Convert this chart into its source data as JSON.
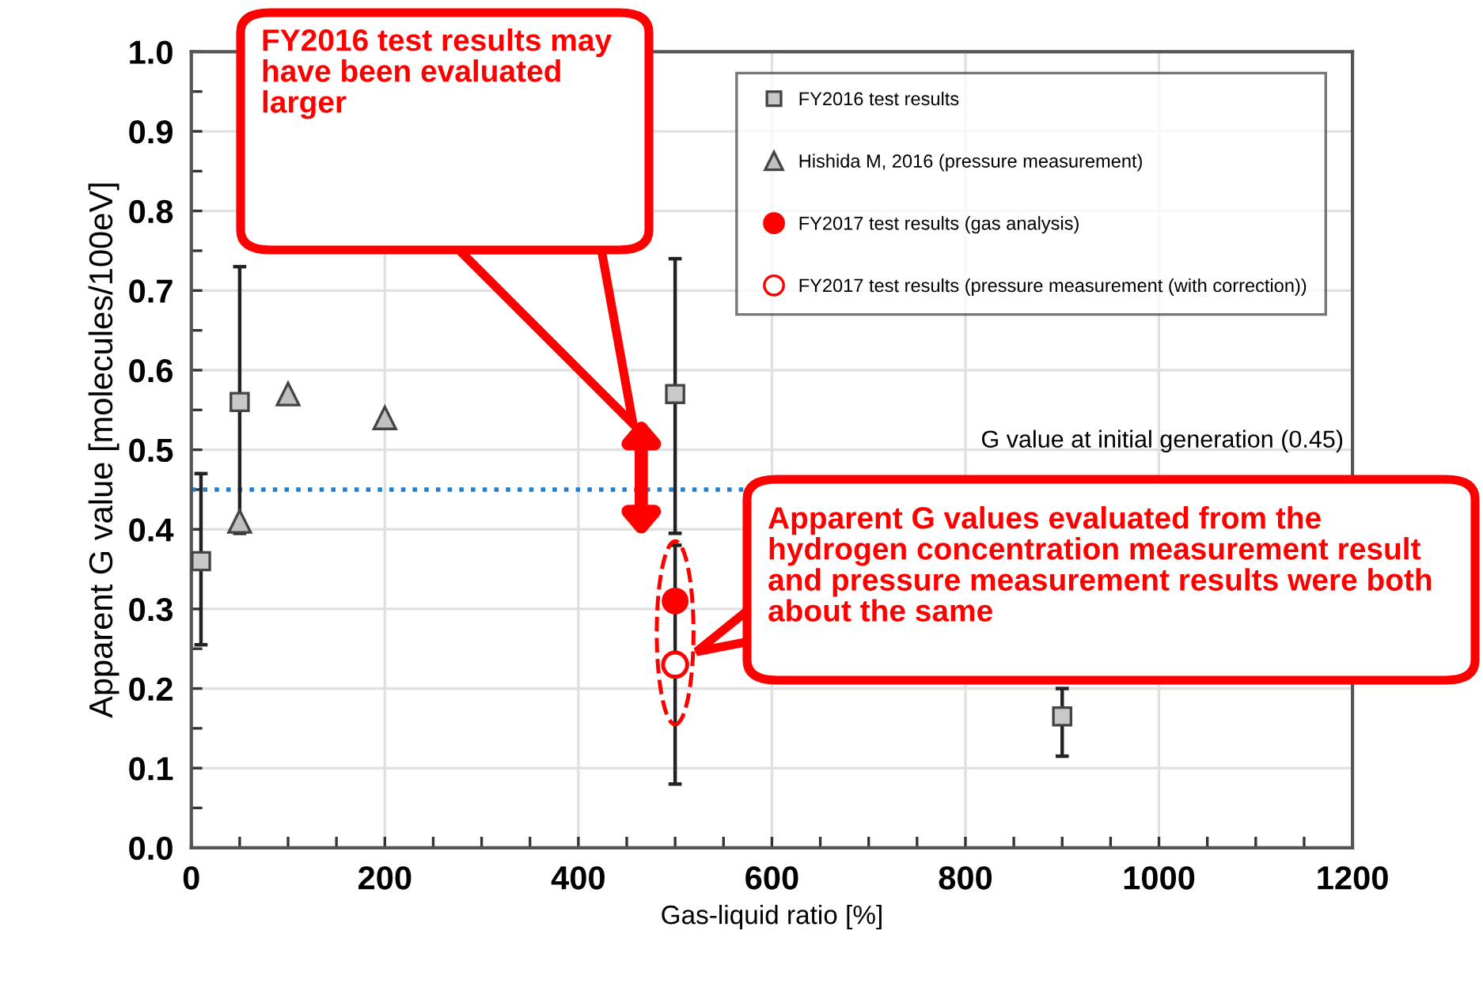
{
  "chart_data": {
    "type": "scatter",
    "xlabel": "Gas-liquid ratio [%]",
    "ylabel": "Apparent G value [molecules/100eV]",
    "xlim": [
      0,
      1200
    ],
    "ylim": [
      0,
      1.0
    ],
    "xticks": [
      0,
      200,
      400,
      600,
      800,
      1000,
      1200
    ],
    "yticks": [
      {
        "value": 0,
        "label": "0.0"
      },
      {
        "value": 0.1,
        "label": "0.1"
      },
      {
        "value": 0.2,
        "label": "0.2"
      },
      {
        "value": 0.3,
        "label": "0.3"
      },
      {
        "value": 0.4,
        "label": "0.4"
      },
      {
        "value": 0.5,
        "label": "0.5"
      },
      {
        "value": 0.6,
        "label": "0.6"
      },
      {
        "value": 0.7,
        "label": "0.7"
      },
      {
        "value": 0.8,
        "label": "0.8"
      },
      {
        "value": 0.9,
        "label": "0.9"
      },
      {
        "value": 1.0,
        "label": "1.0"
      }
    ],
    "grid": true,
    "legend": "top right",
    "series": [
      {
        "name": "FY2016 test results",
        "color": "#c8c8c8",
        "marker": "square",
        "x": [
          10,
          50,
          500,
          900
        ],
        "values": [
          0.36,
          0.56,
          0.57,
          0.165
        ],
        "errors": [
          [
            0.255,
            0.47
          ],
          [
            0.395,
            0.73
          ],
          [
            0.395,
            0.74
          ],
          [
            0.115,
            0.2
          ]
        ]
      },
      {
        "name": "Hishida M, 2016 (pressure measurement)",
        "color": "#c0c0c0",
        "marker": "triangle",
        "x": [
          50,
          100,
          200
        ],
        "values": [
          0.41,
          0.57,
          0.54
        ]
      },
      {
        "name": "FY2017 test results (gas analysis)",
        "color": "#ff0000",
        "marker": "circle",
        "x": [
          500
        ],
        "values": [
          0.31
        ],
        "errors": [
          [
            0.08,
            0.38
          ]
        ]
      },
      {
        "name": "FY2017 test results (pressure measurement (with correction))",
        "color": "#ff0000",
        "marker": "circle",
        "x": [
          500
        ],
        "values": [
          0.23
        ]
      }
    ],
    "ref_lines": [
      {
        "axis": "y",
        "value": 0.45,
        "label": "G value at initial generation (0.45)",
        "color": "#1f7fd0",
        "line_style": "dotted"
      }
    ],
    "annotations": [
      "FY2016 test results may have been evaluated larger",
      "Apparent G values evaluated from the hydrogen concentration measurement result and pressure measurement results were both about the same"
    ]
  }
}
